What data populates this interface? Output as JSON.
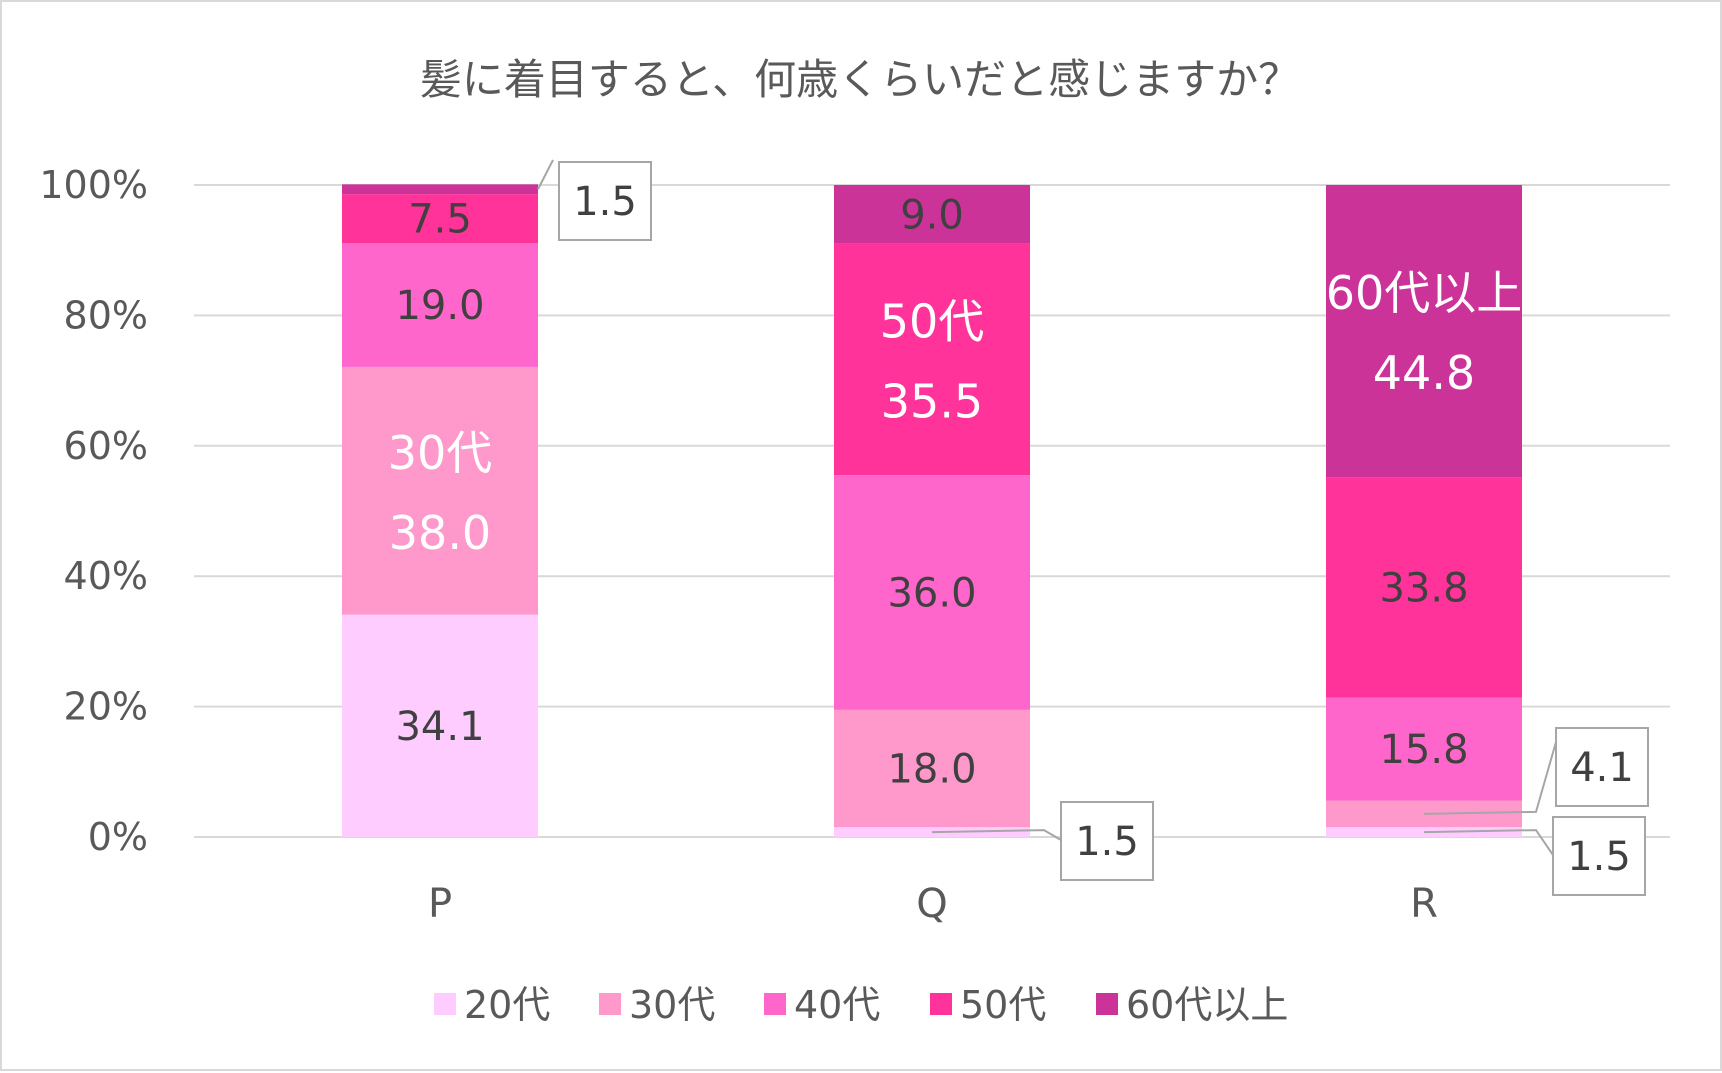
{
  "chart_data": {
    "type": "bar",
    "stacked": true,
    "percent": true,
    "title": "髪に着目すると、何歳くらいだと感じますか？",
    "categories": [
      "P",
      "Q",
      "R"
    ],
    "yticks": [
      "0%",
      "20%",
      "40%",
      "60%",
      "80%",
      "100%"
    ],
    "ylim": [
      0,
      100
    ],
    "grid": true,
    "legend_position": "bottom",
    "series": [
      {
        "name": "20代",
        "color": "#ffccff",
        "values": [
          34.1,
          1.5,
          1.5
        ]
      },
      {
        "name": "30代",
        "color": "#ff99cc",
        "values": [
          38.0,
          18.0,
          4.1
        ]
      },
      {
        "name": "40代",
        "color": "#ff66cc",
        "values": [
          19.0,
          36.0,
          15.8
        ]
      },
      {
        "name": "50代",
        "color": "#ff3399",
        "values": [
          7.5,
          35.5,
          33.8
        ]
      },
      {
        "name": "60代以上",
        "color": "#cc3399",
        "values": [
          1.5,
          9.0,
          44.8
        ]
      }
    ],
    "data_labels": [
      [
        "34.1",
        "1.5",
        "1.5"
      ],
      [
        "38.0",
        "18.0",
        "4.1"
      ],
      [
        "19.0",
        "36.0",
        "15.8"
      ],
      [
        "7.5",
        "35.5",
        "33.8"
      ],
      [
        "1.5",
        "9.0",
        "44.8"
      ]
    ]
  }
}
